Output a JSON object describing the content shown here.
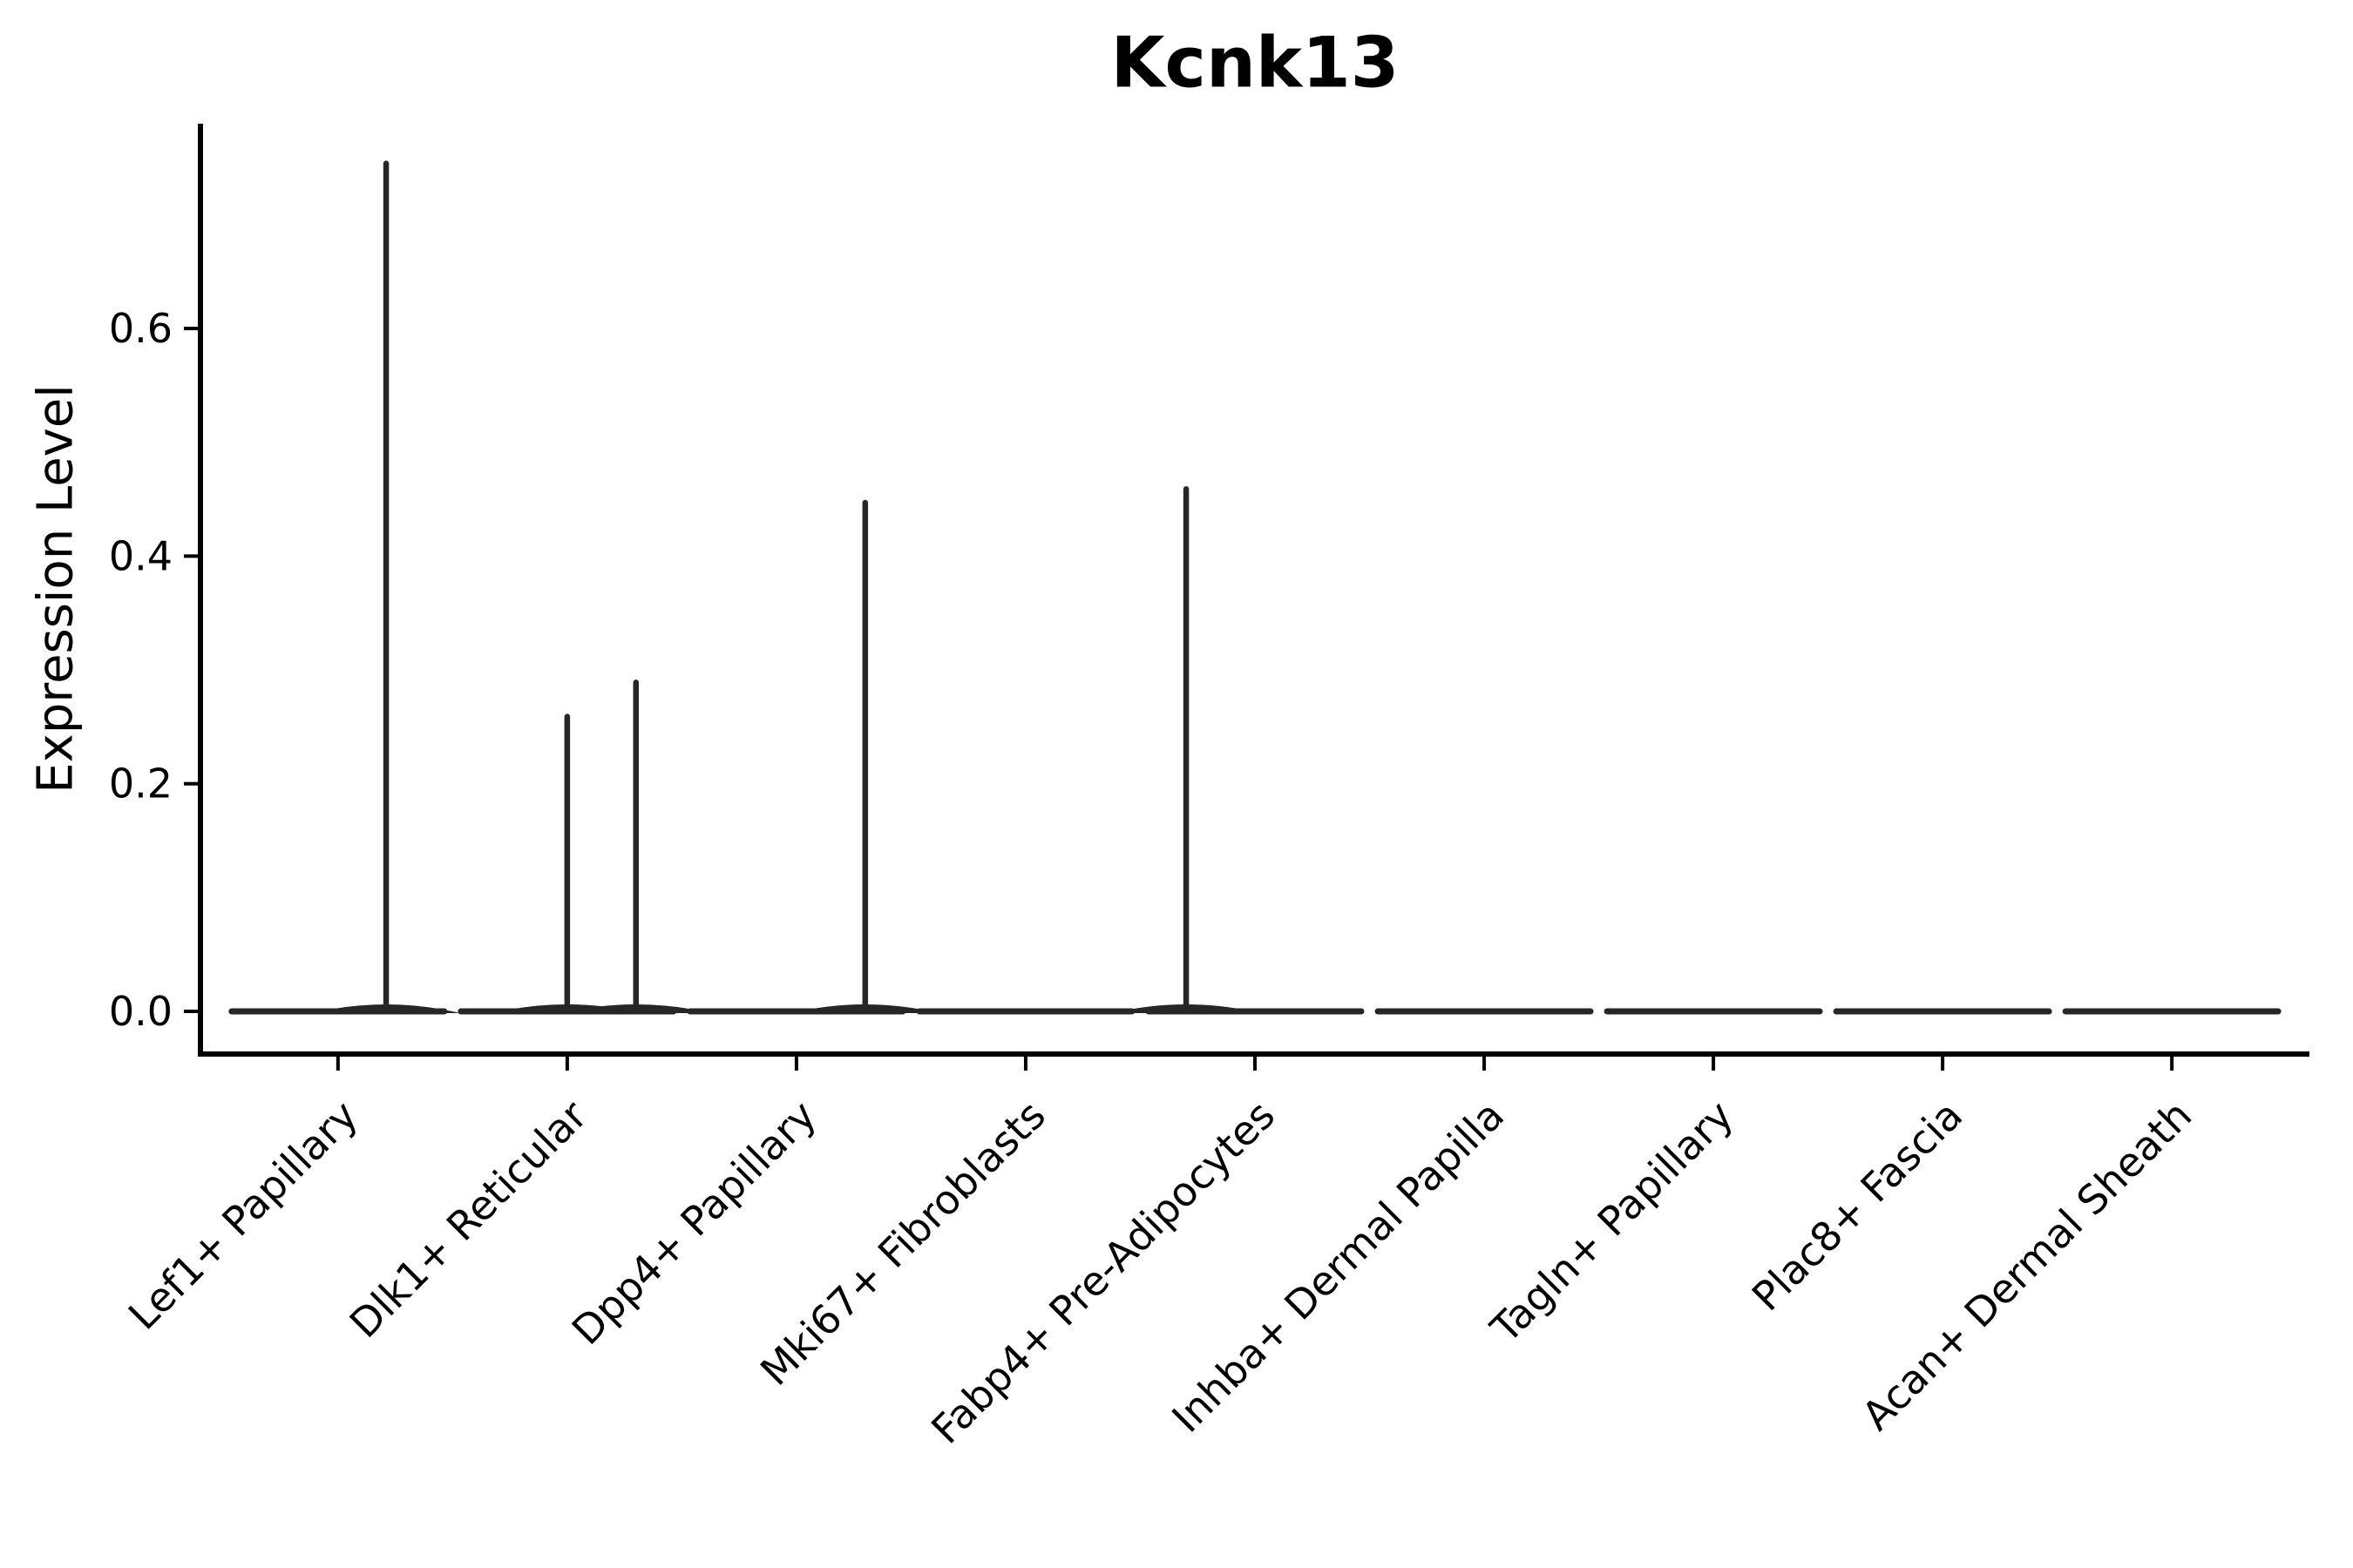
{
  "figure": {
    "background": "#ffffff"
  },
  "chart_data": {
    "type": "violin",
    "title": "Kcnk13",
    "title_bold": true,
    "xlabel": "",
    "ylabel": "Expression Level",
    "legend": "none",
    "grid": false,
    "ylim": [
      -0.0375,
      0.78
    ],
    "yticks": [
      {
        "value": 0.0,
        "label": "0.0"
      },
      {
        "value": 0.2,
        "label": "0.2"
      },
      {
        "value": 0.4,
        "label": "0.4"
      },
      {
        "value": 0.6,
        "label": "0.6"
      }
    ],
    "x_tick_rotation": 45,
    "categories": [
      "Lef1+ Papillary",
      "Dlk1+ Reticular",
      "Dpp4+ Papillary",
      "Mki67+ Fibroblasts",
      "Fabp4+ Pre-Adipocytes",
      "Inhba+ Dermal Papilla",
      "Tagln+ Papillary",
      "Plac8+ Fascia",
      "Acan+ Dermal Sheath"
    ],
    "violins": [
      {
        "category": "Lef1+ Papillary",
        "max_expression": 0.745,
        "spikes": [
          {
            "value": 0.745,
            "offset": 0.21
          }
        ]
      },
      {
        "category": "Dlk1+ Reticular",
        "max_expression": 0.289,
        "spikes": [
          {
            "value": 0.259,
            "offset": 0.0
          },
          {
            "value": 0.289,
            "offset": 0.3
          }
        ]
      },
      {
        "category": "Dpp4+ Papillary",
        "max_expression": 0.447,
        "spikes": [
          {
            "value": 0.447,
            "offset": 0.3
          }
        ]
      },
      {
        "category": "Mki67+ Fibroblasts",
        "max_expression": 0.0,
        "spikes": []
      },
      {
        "category": "Fabp4+ Pre-Adipocytes",
        "max_expression": 0.459,
        "spikes": [
          {
            "value": 0.459,
            "offset": -0.3
          }
        ]
      },
      {
        "category": "Inhba+ Dermal Papilla",
        "max_expression": 0.0,
        "spikes": []
      },
      {
        "category": "Tagln+ Papillary",
        "max_expression": 0.0,
        "spikes": []
      },
      {
        "category": "Plac8+ Fascia",
        "max_expression": 0.0,
        "spikes": []
      },
      {
        "category": "Acan+ Dermal Sheath",
        "max_expression": 0.0,
        "spikes": []
      }
    ],
    "violin_width_frac": 0.93,
    "colors": {
      "violin_stroke": "#262626",
      "axis": "#000000",
      "text": "#000000",
      "background": "#ffffff"
    }
  }
}
